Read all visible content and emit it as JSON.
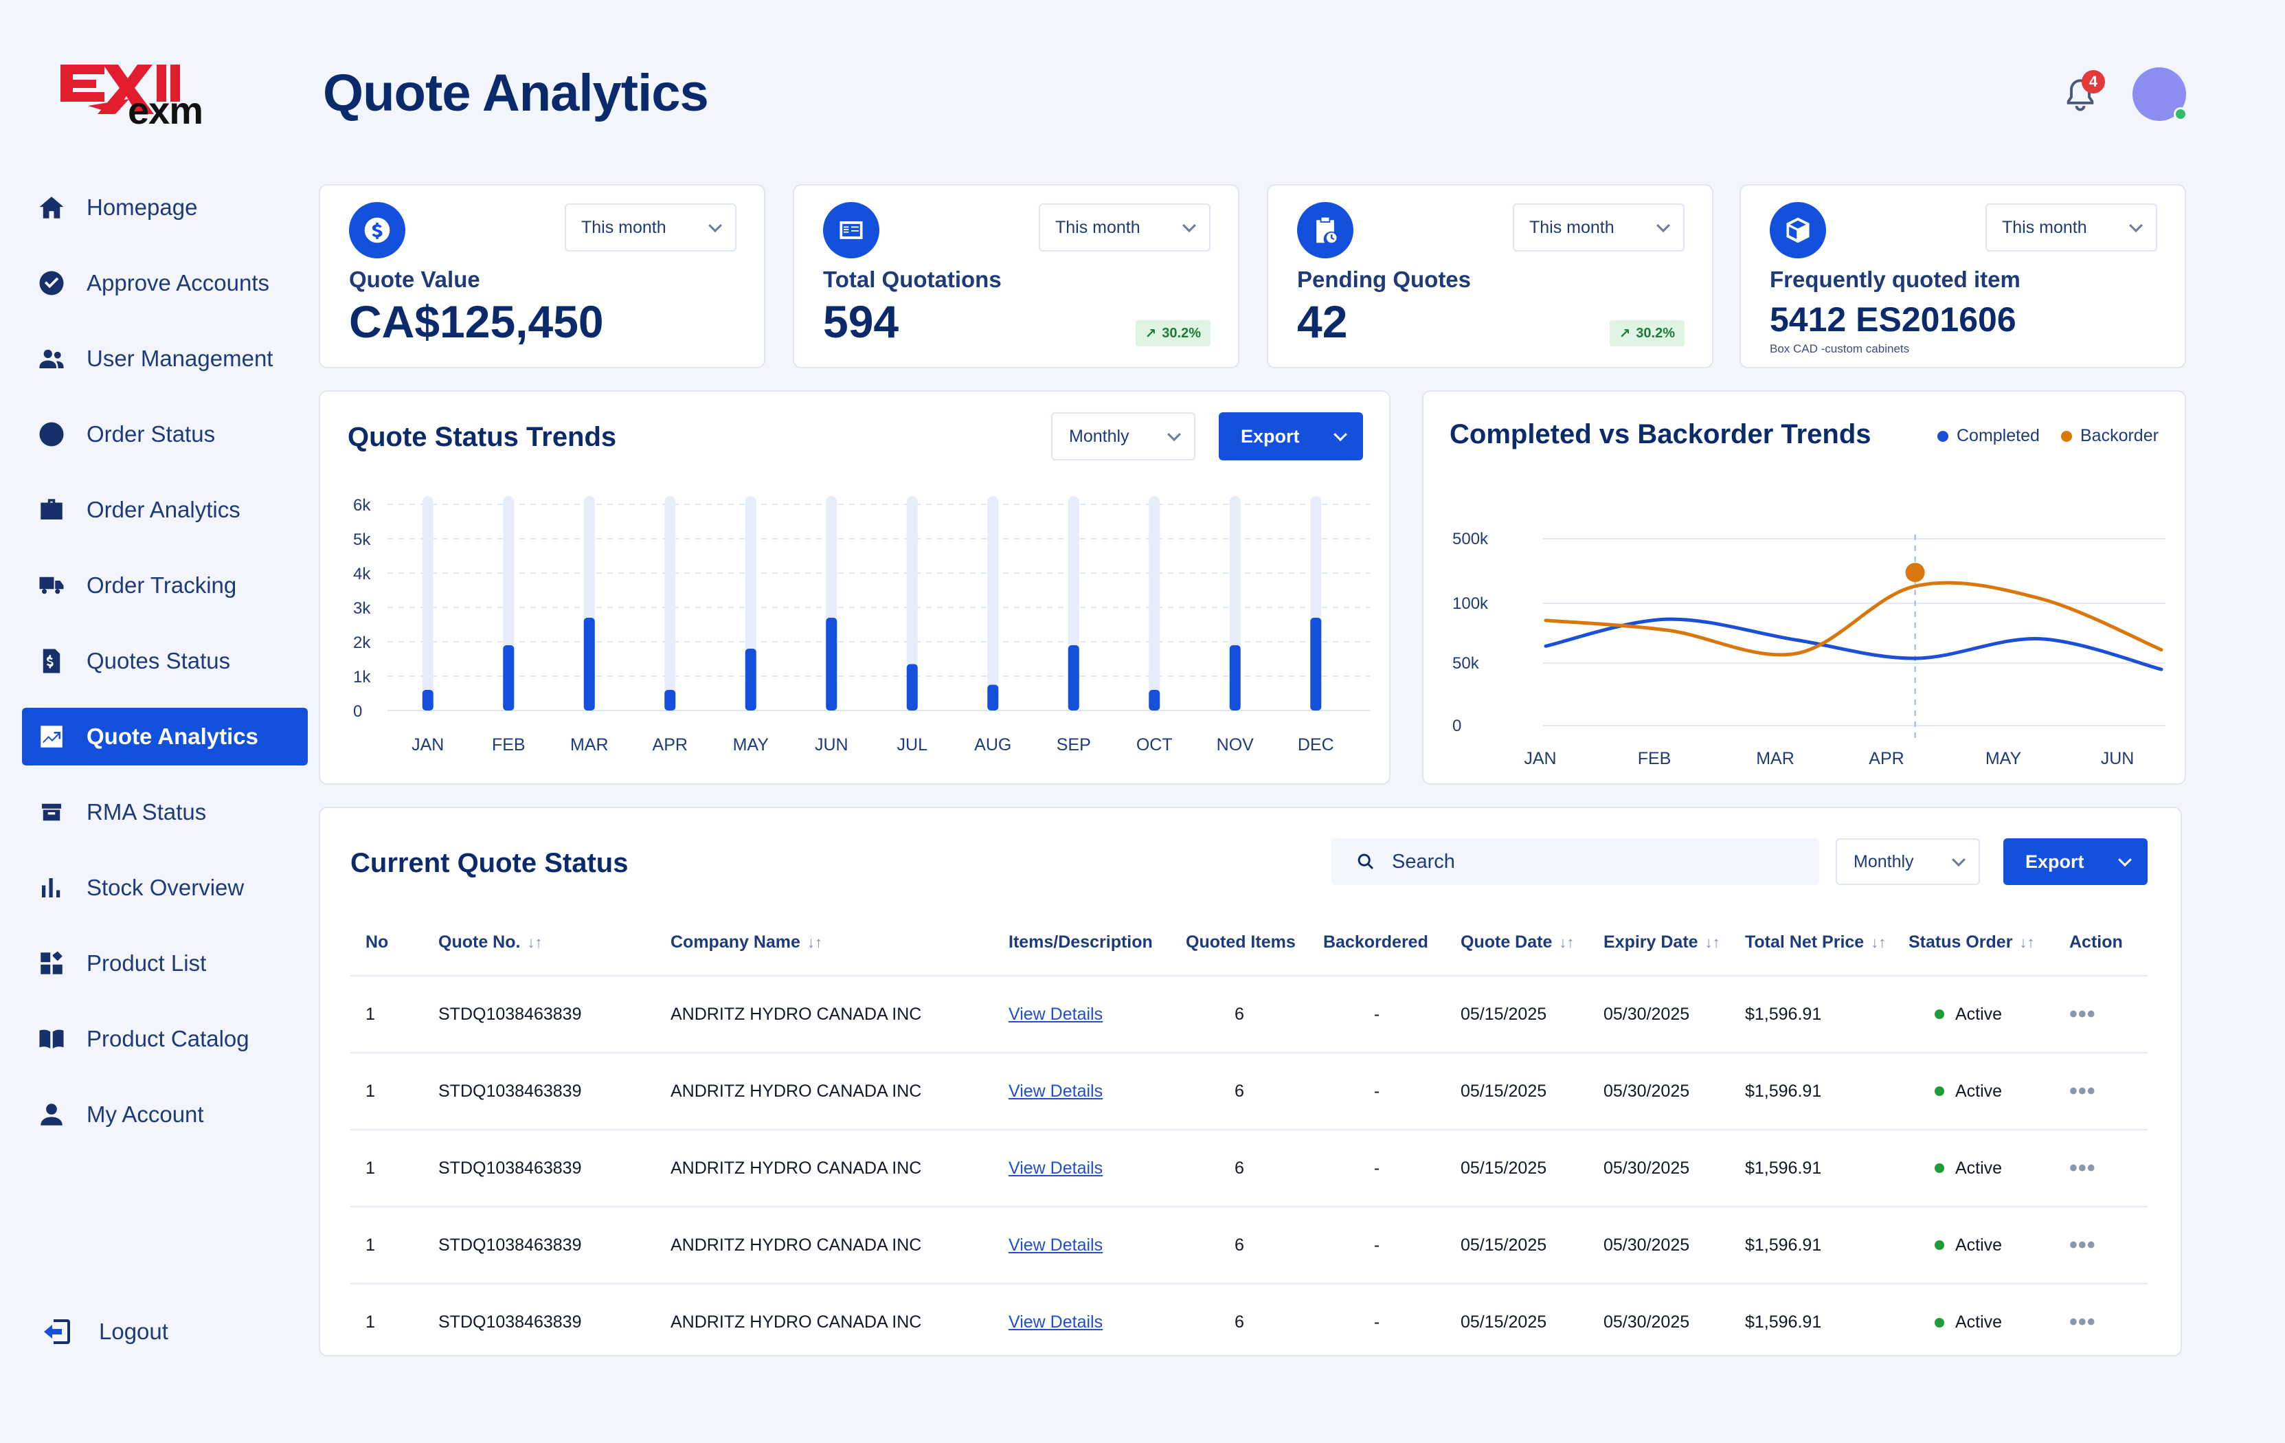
{
  "brand": {
    "name": "exm"
  },
  "page": {
    "title": "Quote Analytics"
  },
  "header": {
    "notifications": "4"
  },
  "sidebar": {
    "items": [
      {
        "label": "Homepage",
        "icon": "home-icon"
      },
      {
        "label": "Approve Accounts",
        "icon": "check-circle-icon"
      },
      {
        "label": "User Management",
        "icon": "users-icon"
      },
      {
        "label": "Order Status",
        "icon": "clock-icon"
      },
      {
        "label": "Order Analytics",
        "icon": "briefcase-icon"
      },
      {
        "label": "Order Tracking",
        "icon": "truck-icon"
      },
      {
        "label": "Quotes Status",
        "icon": "invoice-icon"
      },
      {
        "label": "Quote Analytics",
        "icon": "analytics-icon",
        "active": true
      },
      {
        "label": "RMA Status",
        "icon": "return-box-icon"
      },
      {
        "label": "Stock Overview",
        "icon": "bar-chart-icon"
      },
      {
        "label": "Product List",
        "icon": "grid-icon"
      },
      {
        "label": "Product Catalog",
        "icon": "book-icon"
      },
      {
        "label": "My Account",
        "icon": "user-icon"
      }
    ],
    "logout": "Logout"
  },
  "stats": [
    {
      "label": "Quote Value",
      "value": "CA$125,450",
      "period": "This month"
    },
    {
      "label": "Total Quotations",
      "value": "594",
      "period": "This month",
      "trend": "30.2%"
    },
    {
      "label": "Pending Quotes",
      "value": "42",
      "period": "This month",
      "trend": "30.2%"
    },
    {
      "label": "Frequently quoted item",
      "value": "5412 ES201606",
      "sub": "Box CAD -custom cabinets",
      "period": "This month"
    }
  ],
  "trends_panel": {
    "title": "Quote Status Trends",
    "period": "Monthly",
    "export": "Export"
  },
  "compare_panel": {
    "title": "Completed vs Backorder Trends"
  },
  "chart_data": [
    {
      "type": "bar",
      "title": "Quote Status Trends",
      "categories": [
        "JAN",
        "FEB",
        "MAR",
        "APR",
        "MAY",
        "JUN",
        "JUL",
        "AUG",
        "SEP",
        "OCT",
        "NOV",
        "DEC"
      ],
      "values": [
        600,
        1900,
        2700,
        600,
        1800,
        2700,
        1350,
        750,
        1900,
        600,
        1900,
        2700
      ],
      "ylim": [
        0,
        6000
      ],
      "yticks": [
        "0",
        "1k",
        "2k",
        "3k",
        "4k",
        "5k",
        "6k"
      ],
      "colors": {
        "bar": "#1350dc",
        "track": "#e6ecfa"
      }
    },
    {
      "type": "line",
      "title": "Completed vs Backorder Trends",
      "categories": [
        "JAN",
        "FEB",
        "MAR",
        "APR",
        "MAY",
        "JUN"
      ],
      "yticks": [
        "0",
        "50k",
        "100k",
        "500k"
      ],
      "series": [
        {
          "name": "Completed",
          "color": "#1a4fd6",
          "values": [
            65,
            87,
            70,
            55,
            71,
            46
          ]
        },
        {
          "name": "Backorder",
          "color": "#d9770d",
          "values": [
            86,
            78,
            59,
            114,
            104,
            62
          ]
        }
      ],
      "highlight": {
        "category": "APR",
        "series": "Backorder"
      }
    }
  ],
  "table": {
    "title": "Current Quote Status",
    "search_placeholder": "Search",
    "period": "Monthly",
    "export": "Export",
    "columns": [
      "No",
      "Quote No.",
      "Company Name",
      "Items/Description",
      "Quoted Items",
      "Backordered",
      "Quote Date",
      "Expiry Date",
      "Total Net Price",
      "Status Order",
      "Action"
    ],
    "rows": [
      {
        "no": "1",
        "quote_no": "STDQ1038463839",
        "company": "ANDRITZ HYDRO CANADA INC",
        "items": "View Details",
        "quoted": "6",
        "backordered": "-",
        "quote_date": "05/15/2025",
        "expiry_date": "05/30/2025",
        "price": "$1,596.91",
        "status": "Active"
      },
      {
        "no": "1",
        "quote_no": "STDQ1038463839",
        "company": "ANDRITZ HYDRO CANADA INC",
        "items": "View Details",
        "quoted": "6",
        "backordered": "-",
        "quote_date": "05/15/2025",
        "expiry_date": "05/30/2025",
        "price": "$1,596.91",
        "status": "Active"
      },
      {
        "no": "1",
        "quote_no": "STDQ1038463839",
        "company": "ANDRITZ HYDRO CANADA INC",
        "items": "View Details",
        "quoted": "6",
        "backordered": "-",
        "quote_date": "05/15/2025",
        "expiry_date": "05/30/2025",
        "price": "$1,596.91",
        "status": "Active"
      },
      {
        "no": "1",
        "quote_no": "STDQ1038463839",
        "company": "ANDRITZ HYDRO CANADA INC",
        "items": "View Details",
        "quoted": "6",
        "backordered": "-",
        "quote_date": "05/15/2025",
        "expiry_date": "05/30/2025",
        "price": "$1,596.91",
        "status": "Active"
      },
      {
        "no": "1",
        "quote_no": "STDQ1038463839",
        "company": "ANDRITZ HYDRO CANADA INC",
        "items": "View Details",
        "quoted": "6",
        "backordered": "-",
        "quote_date": "05/15/2025",
        "expiry_date": "05/30/2025",
        "price": "$1,596.91",
        "status": "Active"
      }
    ]
  },
  "colors": {
    "accent": "#1350dc",
    "navy": "#0b2a6b",
    "completed": "#1a4fd6",
    "backorder": "#d9770d",
    "active": "#1f9d3a"
  }
}
